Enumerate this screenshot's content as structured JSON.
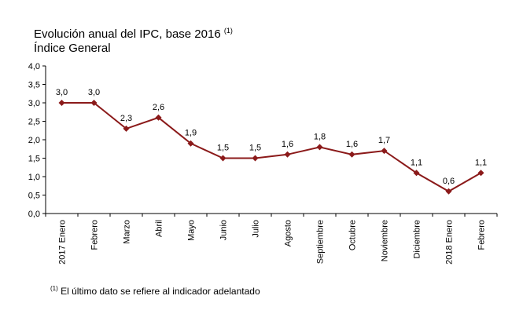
{
  "header": {
    "title": "Evolución anual del IPC, base 2016",
    "title_note": "(1)",
    "subtitle": "Índice General"
  },
  "footnote": {
    "marker": "(1)",
    "text": "El último dato se refiere al indicador adelantado"
  },
  "chart_data": {
    "type": "line",
    "title": "Evolución anual del IPC, base 2016 (1)",
    "subtitle": "Índice General",
    "categories": [
      "2017 Enero",
      "Febrero",
      "Marzo",
      "Abril",
      "Mayo",
      "Junio",
      "Julio",
      "Agosto",
      "Septiembre",
      "Octubre",
      "Noviembre",
      "Diciembre",
      "2018 Enero",
      "Febrero"
    ],
    "series": [
      {
        "values": [
          3.0,
          3.0,
          2.3,
          2.6,
          1.9,
          1.5,
          1.5,
          1.6,
          1.8,
          1.6,
          1.7,
          1.1,
          0.6,
          1.1
        ],
        "labels": [
          "3,0",
          "3,0",
          "2,3",
          "2,6",
          "1,9",
          "1,5",
          "1,5",
          "1,6",
          "1,8",
          "1,6",
          "1,7",
          "1,1",
          "0,6",
          "1,1"
        ]
      }
    ],
    "yticks": [
      "0,0",
      "0,5",
      "1,0",
      "1,5",
      "2,0",
      "2,5",
      "3,0",
      "3,5",
      "4,0"
    ],
    "ylim": [
      0,
      4
    ],
    "grid": false,
    "line_color": "#8B1A1A",
    "marker": "diamond"
  }
}
